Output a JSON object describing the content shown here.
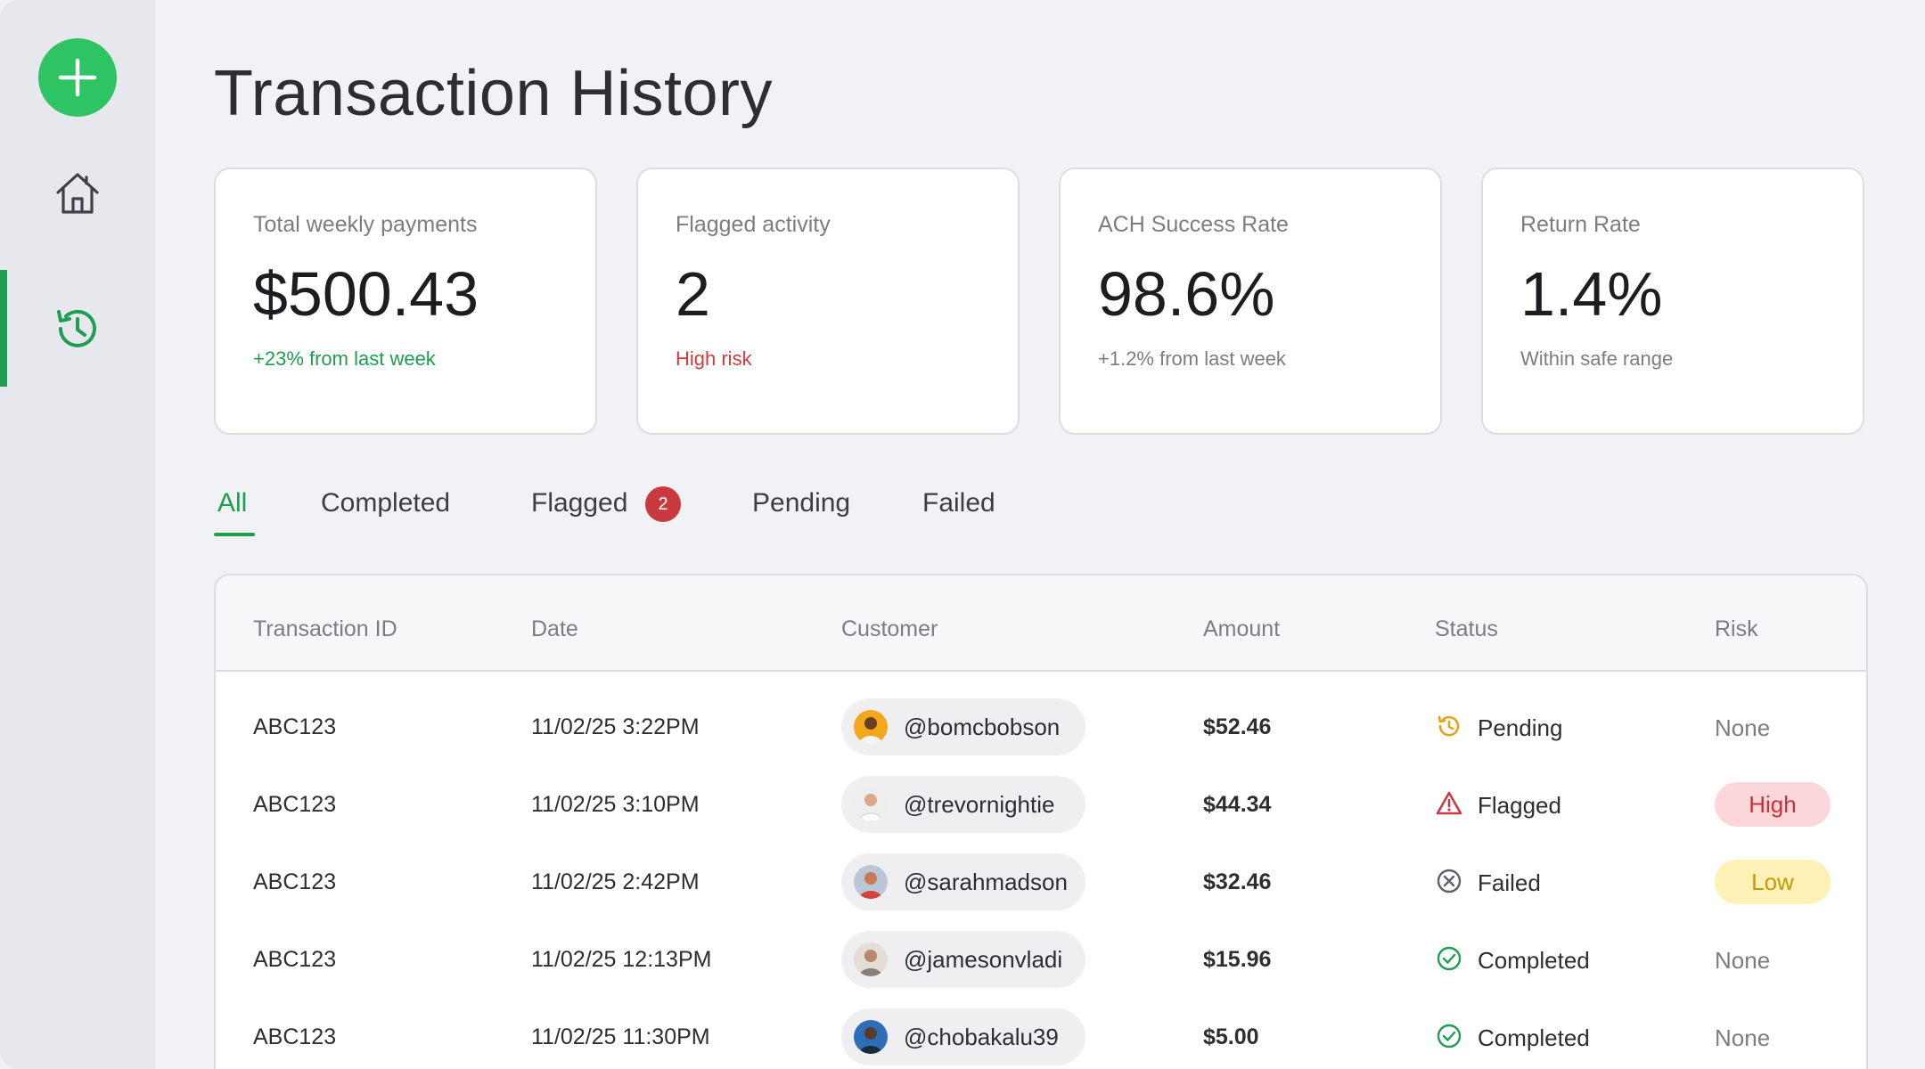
{
  "colors": {
    "accent": "#1f9d50",
    "fab": "#2ec464",
    "danger": "#c93a40",
    "warning": "#e5a21a"
  },
  "sidebar": {
    "items": [
      {
        "icon": "plus-icon",
        "label": "New"
      },
      {
        "icon": "home-icon",
        "label": "Home"
      },
      {
        "icon": "history-icon",
        "label": "History",
        "active": true
      }
    ]
  },
  "page": {
    "title": "Transaction History"
  },
  "stats": [
    {
      "label": "Total weekly payments",
      "value": "$500.43",
      "sub": "+23% from last week",
      "tone": "green"
    },
    {
      "label": "Flagged activity",
      "value": "2",
      "sub": "High risk",
      "tone": "red"
    },
    {
      "label": "ACH Success Rate",
      "value": "98.6%",
      "sub": "+1.2% from last week",
      "tone": "grey"
    },
    {
      "label": "Return Rate",
      "value": "1.4%",
      "sub": "Within safe range",
      "tone": "grey"
    }
  ],
  "tabs": [
    {
      "label": "All",
      "active": true
    },
    {
      "label": "Completed"
    },
    {
      "label": "Flagged",
      "badge": "2"
    },
    {
      "label": "Pending"
    },
    {
      "label": "Failed"
    }
  ],
  "table": {
    "columns": [
      "Transaction ID",
      "Date",
      "Customer",
      "Amount",
      "Status",
      "Risk"
    ],
    "rows": [
      {
        "id": "ABC123",
        "date": "11/02/25 3:22PM",
        "customer": "@bomcbobson",
        "amount": "$52.46",
        "status": "Pending",
        "status_icon": "clock-icon",
        "risk": "None"
      },
      {
        "id": "ABC123",
        "date": "11/02/25 3:10PM",
        "customer": "@trevornightie",
        "amount": "$44.34",
        "status": "Flagged",
        "status_icon": "warning-triangle-icon",
        "risk": "High"
      },
      {
        "id": "ABC123",
        "date": "11/02/25 2:42PM",
        "customer": "@sarahmadson",
        "amount": "$32.46",
        "status": "Failed",
        "status_icon": "x-circle-icon",
        "risk": "Low"
      },
      {
        "id": "ABC123",
        "date": "11/02/25 12:13PM",
        "customer": "@jamesonvladi",
        "amount": "$15.96",
        "status": "Completed",
        "status_icon": "check-circle-icon",
        "risk": "None"
      },
      {
        "id": "ABC123",
        "date": "11/02/25 11:30PM",
        "customer": "@chobakalu39",
        "amount": "$5.00",
        "status": "Completed",
        "status_icon": "check-circle-icon",
        "risk": "None"
      }
    ]
  }
}
